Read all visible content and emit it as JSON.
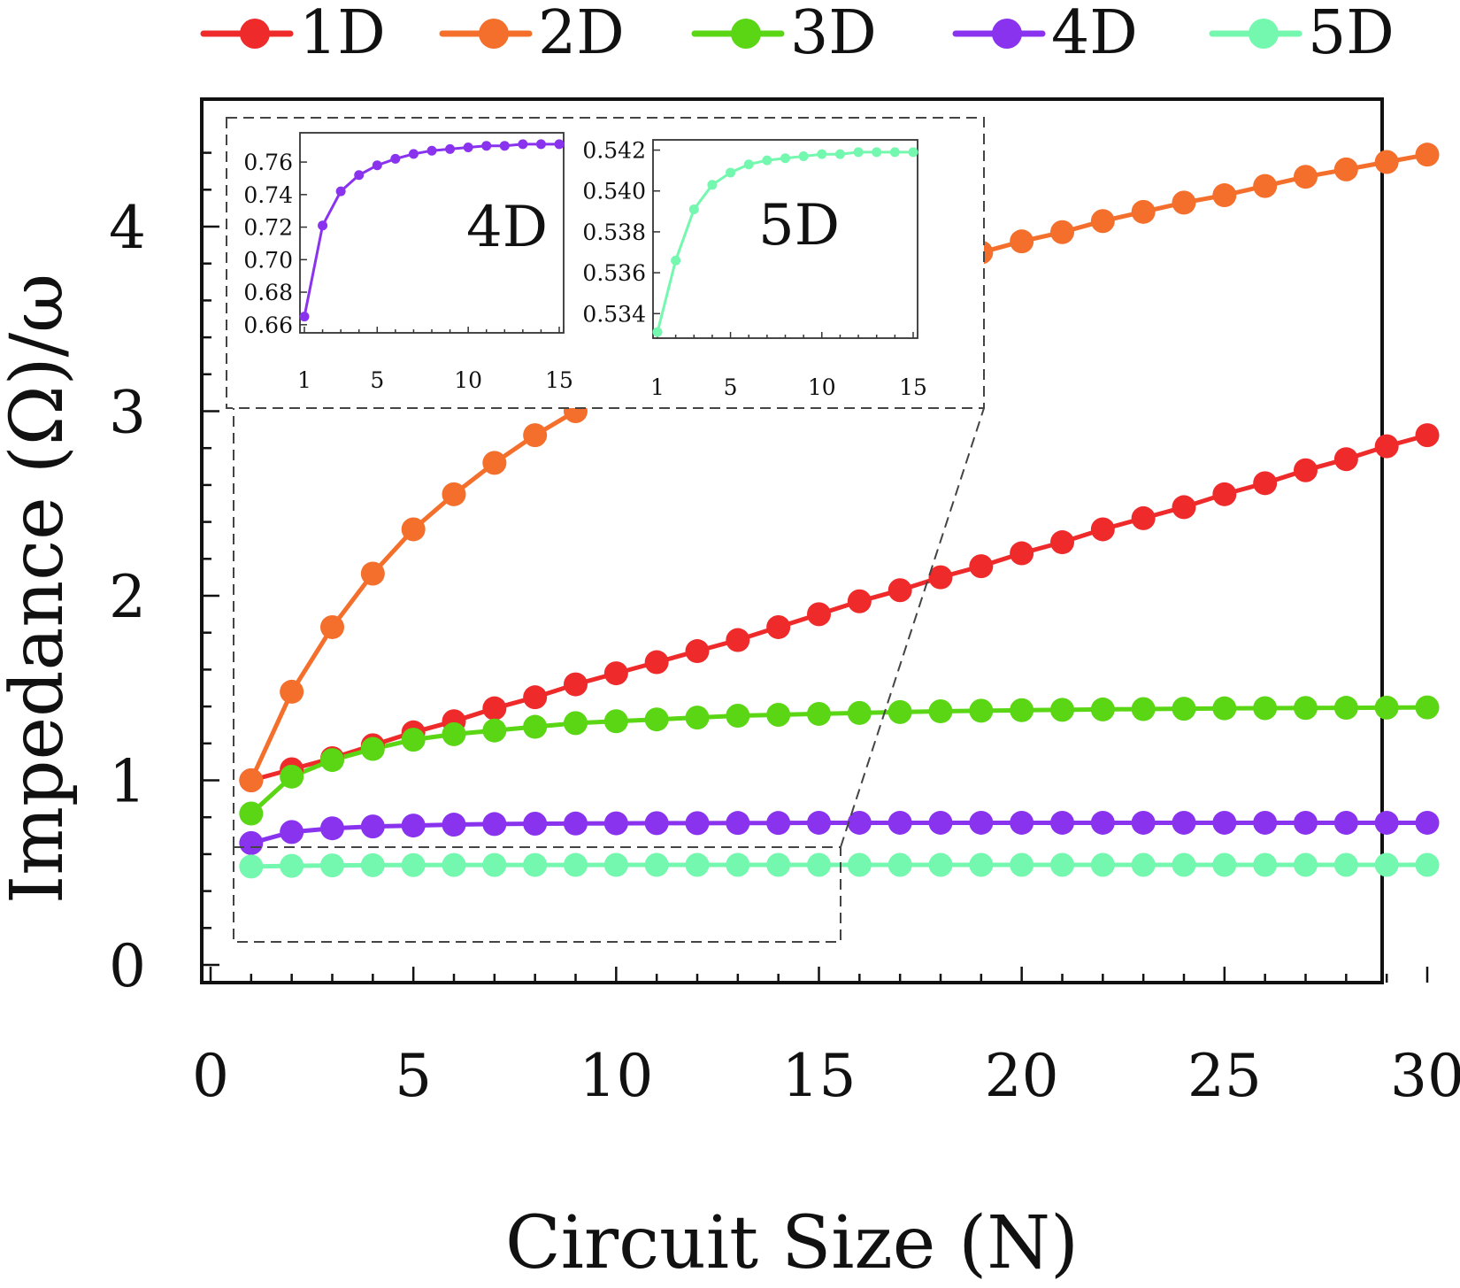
{
  "chart_data": [
    {
      "type": "line",
      "title": "",
      "xlabel": "Circuit Size (N)",
      "ylabel": "Impedance (Ω)/ω",
      "xlim": [
        0,
        30
      ],
      "ylim": [
        0,
        4.5
      ],
      "xticks": [
        "0",
        "5",
        "10",
        "15",
        "20",
        "25",
        "30"
      ],
      "yticks": [
        "0",
        "1",
        "2",
        "3",
        "4"
      ],
      "legend_position": "top",
      "grid": false,
      "x": [
        1,
        2,
        3,
        4,
        5,
        6,
        7,
        8,
        9,
        10,
        11,
        12,
        13,
        14,
        15,
        16,
        17,
        18,
        19,
        20,
        21,
        22,
        23,
        24,
        25,
        26,
        27,
        28,
        29,
        30
      ],
      "series": [
        {
          "name": "1D",
          "color": "#ee2a2a",
          "values": [
            1.0,
            1.06,
            1.12,
            1.19,
            1.26,
            1.32,
            1.39,
            1.45,
            1.52,
            1.58,
            1.64,
            1.7,
            1.76,
            1.83,
            1.9,
            1.97,
            2.03,
            2.1,
            2.16,
            2.23,
            2.29,
            2.36,
            2.42,
            2.48,
            2.55,
            2.61,
            2.68,
            2.74,
            2.81,
            2.87
          ]
        },
        {
          "name": "2D",
          "color": "#f36f2b",
          "values": [
            1.0,
            1.48,
            1.83,
            2.12,
            2.36,
            2.55,
            2.72,
            2.87,
            3.0,
            3.12,
            3.24,
            3.34,
            3.44,
            3.52,
            3.6,
            3.67,
            3.74,
            3.8,
            3.86,
            3.92,
            3.97,
            4.03,
            4.08,
            4.13,
            4.17,
            4.22,
            4.27,
            4.31,
            4.35,
            4.39
          ]
        },
        {
          "name": "3D",
          "color": "#5ad614",
          "values": [
            0.82,
            1.02,
            1.11,
            1.17,
            1.22,
            1.25,
            1.27,
            1.29,
            1.31,
            1.32,
            1.33,
            1.34,
            1.35,
            1.355,
            1.36,
            1.365,
            1.37,
            1.374,
            1.377,
            1.38,
            1.382,
            1.384,
            1.386,
            1.388,
            1.39,
            1.391,
            1.392,
            1.393,
            1.394,
            1.395
          ]
        },
        {
          "name": "4D",
          "color": "#8a33ef",
          "values": [
            0.66,
            0.72,
            0.74,
            0.75,
            0.755,
            0.76,
            0.763,
            0.765,
            0.766,
            0.767,
            0.768,
            0.768,
            0.769,
            0.769,
            0.77,
            0.77,
            0.77,
            0.77,
            0.77,
            0.77,
            0.77,
            0.77,
            0.77,
            0.77,
            0.77,
            0.77,
            0.77,
            0.77,
            0.77,
            0.77
          ]
        },
        {
          "name": "5D",
          "color": "#74f7ae",
          "values": [
            0.533,
            0.5366,
            0.5391,
            0.5403,
            0.5409,
            0.5413,
            0.5415,
            0.5416,
            0.5417,
            0.5418,
            0.5418,
            0.5419,
            0.5419,
            0.5419,
            0.5419,
            0.542,
            0.542,
            0.542,
            0.542,
            0.542,
            0.542,
            0.542,
            0.542,
            0.542,
            0.542,
            0.542,
            0.542,
            0.542,
            0.542,
            0.542
          ]
        }
      ]
    },
    {
      "type": "line",
      "title": "4D",
      "xlabel": "",
      "ylabel": "",
      "xlim": [
        1,
        15
      ],
      "ylim": [
        0.655,
        0.778
      ],
      "xticks": [
        "1",
        "5",
        "10",
        "15"
      ],
      "yticks": [
        "0.66",
        "0.68",
        "0.70",
        "0.72",
        "0.74",
        "0.76"
      ],
      "x": [
        1,
        2,
        3,
        4,
        5,
        6,
        7,
        8,
        9,
        10,
        11,
        12,
        13,
        14,
        15
      ],
      "series": [
        {
          "name": "",
          "color": "#8a33ef",
          "values": [
            0.665,
            0.721,
            0.742,
            0.752,
            0.758,
            0.762,
            0.765,
            0.767,
            0.768,
            0.769,
            0.77,
            0.77,
            0.771,
            0.771,
            0.771
          ]
        }
      ]
    },
    {
      "type": "line",
      "title": "5D",
      "xlabel": "",
      "ylabel": "",
      "xlim": [
        1,
        15
      ],
      "ylim": [
        0.5328,
        0.5425
      ],
      "xticks": [
        "1",
        "5",
        "10",
        "15"
      ],
      "yticks": [
        "0.534",
        "0.536",
        "0.538",
        "0.540",
        "0.542"
      ],
      "x": [
        1,
        2,
        3,
        4,
        5,
        6,
        7,
        8,
        9,
        10,
        11,
        12,
        13,
        14,
        15
      ],
      "series": [
        {
          "name": "",
          "color": "#74f7ae",
          "values": [
            0.5331,
            0.5366,
            0.5391,
            0.5403,
            0.5409,
            0.5413,
            0.5415,
            0.5416,
            0.5417,
            0.5418,
            0.5418,
            0.5419,
            0.5419,
            0.5419,
            0.5419
          ]
        }
      ]
    }
  ]
}
